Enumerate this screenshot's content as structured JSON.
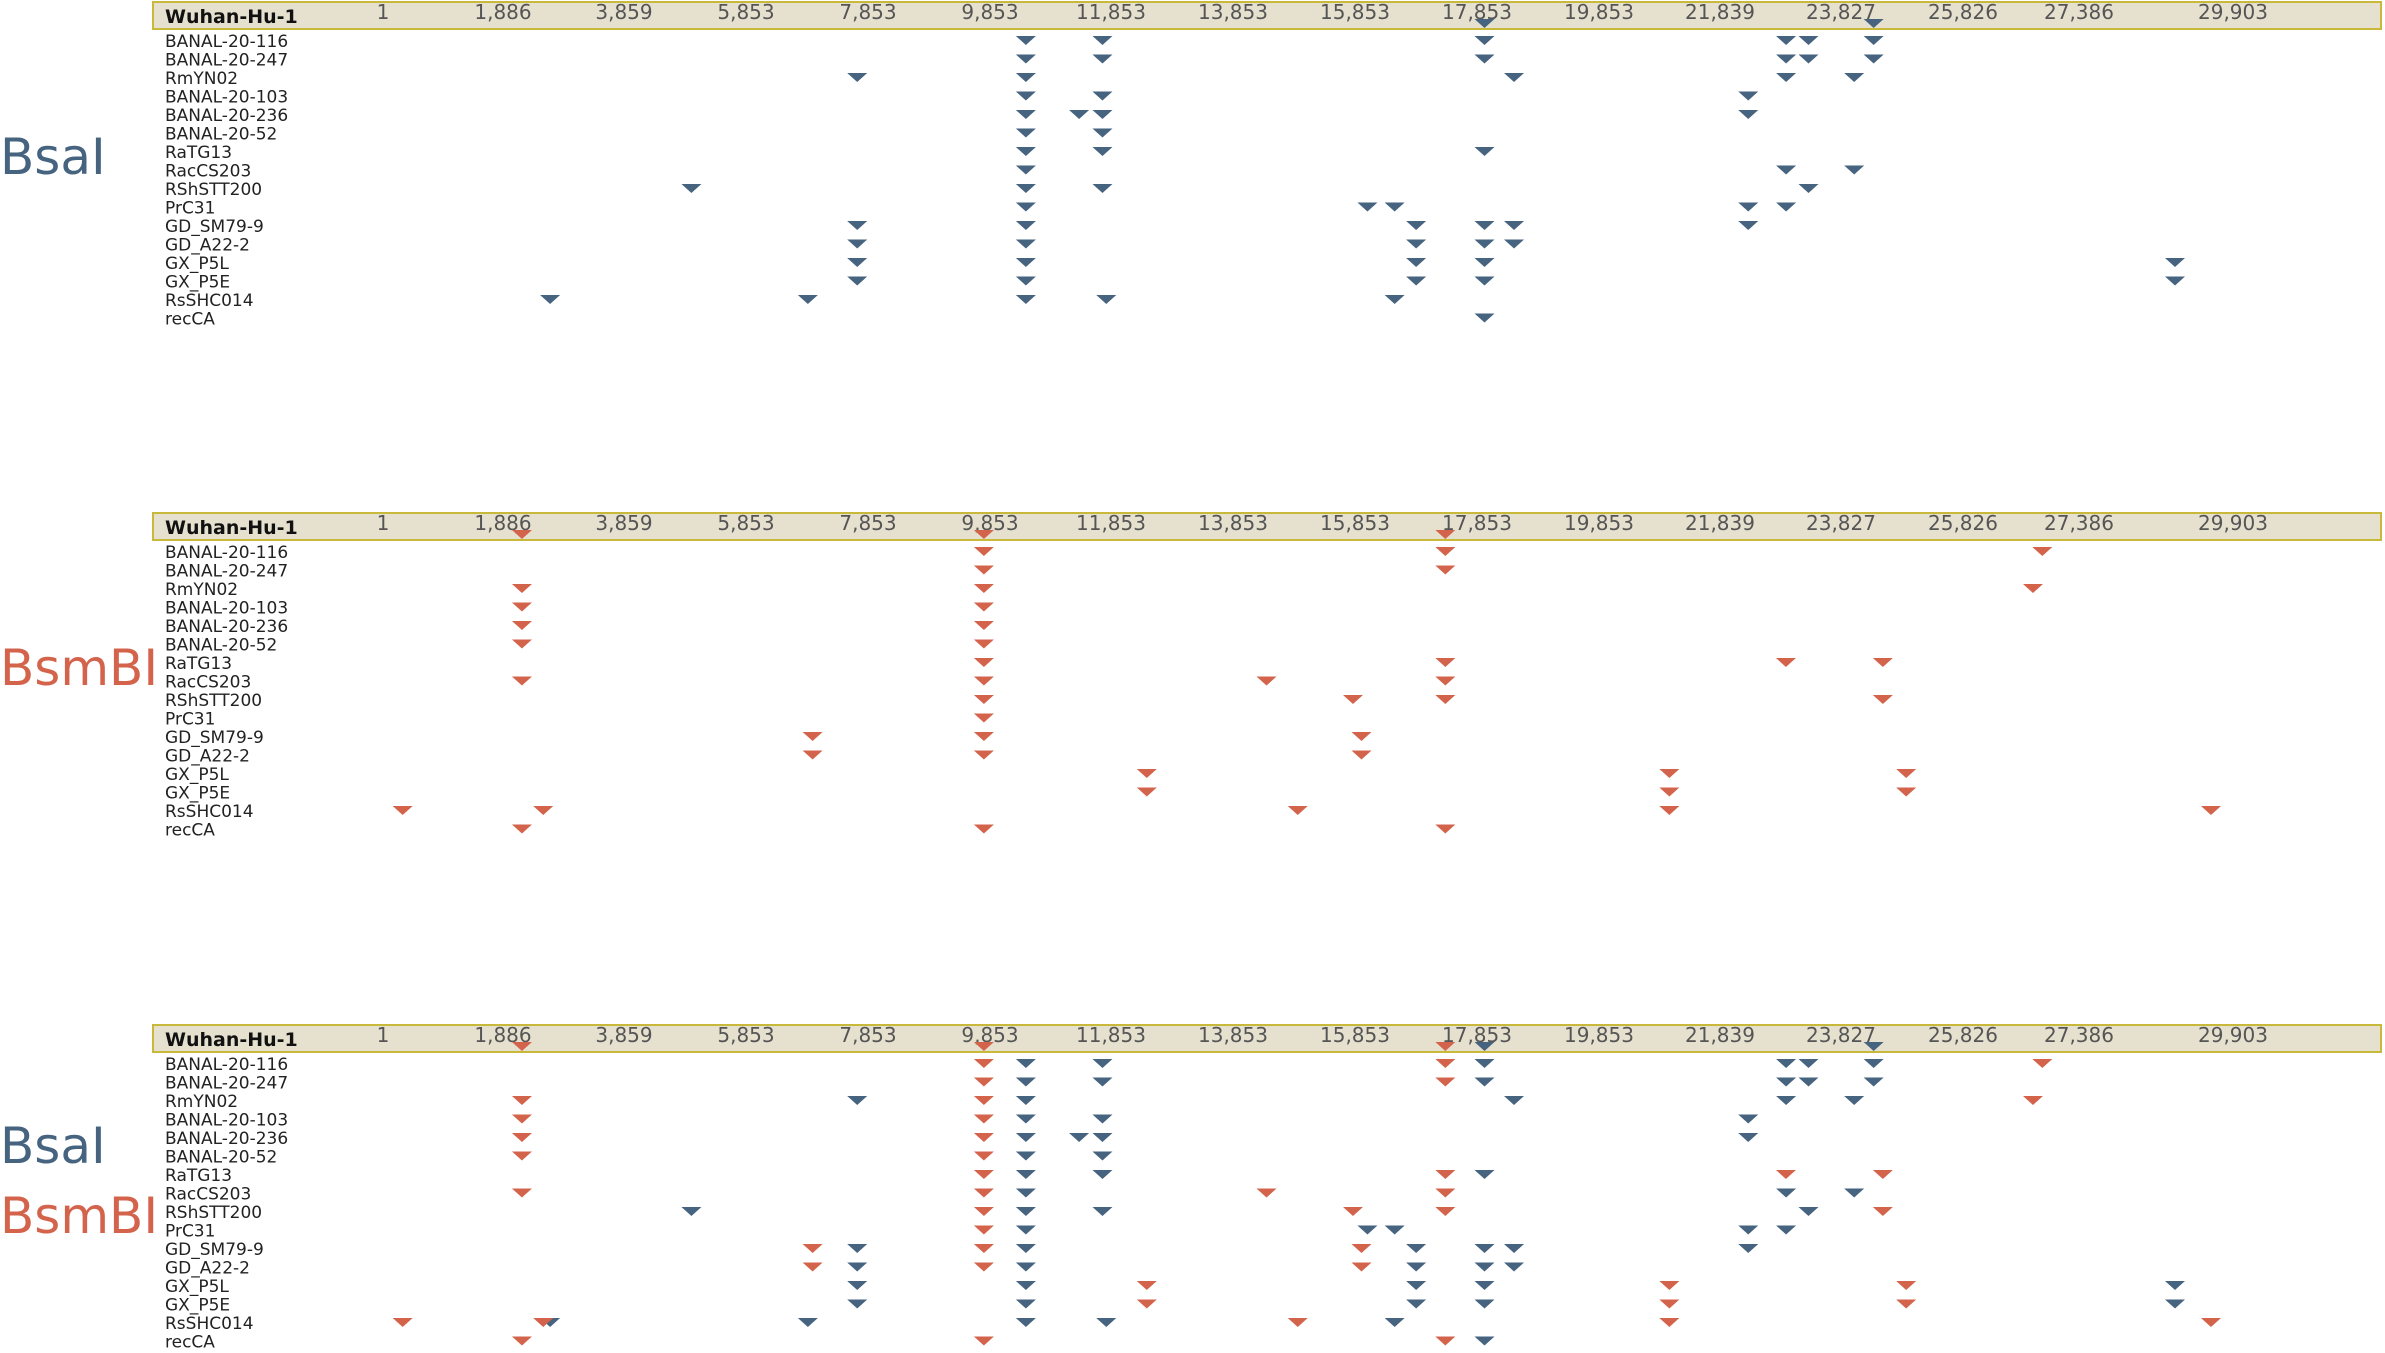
{
  "figure": {
    "reference_label": "Wuhan-Hu-1",
    "tick_labels": [
      "1",
      "1,886",
      "3,859",
      "5,853",
      "7,853",
      "9,853",
      "11,853",
      "13,853",
      "15,853",
      "17,853",
      "19,853",
      "21,839",
      "23,827",
      "25,826",
      "27,386",
      "29,903"
    ],
    "sequences": [
      "BANAL-20-116",
      "BANAL-20-247",
      "RmYN02",
      "BANAL-20-103",
      "BANAL-20-236",
      "BANAL-20-52",
      "RaTG13",
      "RacCS203",
      "RShSTT200",
      "PrC31",
      "GD_SM79-9",
      "GD_A22-2",
      "GX_P5L",
      "GX_P5E",
      "RsSHC014",
      "recCA"
    ],
    "colors": {
      "BsaI": "#46637f",
      "BsmBI": "#d4634c",
      "bar_fill": "#e6e0cf",
      "bar_border": "#c9b93b"
    }
  },
  "panels": [
    {
      "labels": [
        {
          "text": "BsaI",
          "enzyme": "BsaI"
        }
      ],
      "enzymes": [
        "BsaI"
      ]
    },
    {
      "labels": [
        {
          "text": "BsmBI",
          "enzyme": "BsmBI"
        }
      ],
      "enzymes": [
        "BsmBI"
      ]
    },
    {
      "labels": [
        {
          "text": "BsaI",
          "enzyme": "BsaI"
        },
        {
          "text": "BsmBI",
          "enzyme": "BsmBI"
        }
      ],
      "enzymes": [
        "BsaI",
        "BsmBI"
      ]
    }
  ],
  "sites": {
    "BsaI": {
      "Wuhan-Hu-1": [
        17976,
        24362
      ],
      "BANAL-20-116": [
        10446,
        11712,
        17976,
        22925,
        23293,
        24362
      ],
      "BANAL-20-247": [
        10446,
        11712,
        17976,
        22925,
        23293,
        24362
      ],
      "RmYN02": [
        7676,
        10446,
        18460,
        22925,
        24043
      ],
      "BANAL-20-103": [
        10446,
        11712,
        22303
      ],
      "BANAL-20-236": [
        10446,
        11326,
        11712,
        22303
      ],
      "BANAL-20-52": [
        10446,
        11712
      ],
      "RaTG13": [
        10446,
        11712,
        17976
      ],
      "RacCS203": [
        10446,
        22925,
        24043
      ],
      "RShSTT200": [
        4961,
        10446,
        11712,
        23293
      ],
      "PrC31": [
        10446,
        16057,
        16503,
        22303,
        22925
      ],
      "GD_SM79-9": [
        7676,
        10446,
        16855,
        17976,
        18460,
        22303
      ],
      "GD_A22-2": [
        7676,
        10446,
        16855,
        17976,
        18460
      ],
      "GX_P5L": [
        7676,
        10446,
        16855,
        17976,
        28955
      ],
      "GX_P5E": [
        7676,
        10446,
        16855,
        17976,
        28955
      ],
      "RsSHC014": [
        2654,
        6867,
        10446,
        11775,
        16503
      ],
      "recCA": [
        17976
      ]
    },
    "BsmBI": {
      "Wuhan-Hu-1": [
        2195,
        9753,
        17334
      ],
      "BANAL-20-116": [
        9753,
        17334,
        26893
      ],
      "BANAL-20-247": [
        9753,
        17334
      ],
      "RmYN02": [
        2195,
        9753,
        26767
      ],
      "BANAL-20-103": [
        2195,
        9753
      ],
      "BANAL-20-236": [
        2195,
        9753
      ],
      "BANAL-20-52": [
        2195,
        9753
      ],
      "RaTG13": [
        9753,
        17334,
        22922,
        24513
      ],
      "RacCS203": [
        2195,
        9753,
        14402,
        17334
      ],
      "RShSTT200": [
        9753,
        15820,
        17334,
        24513
      ],
      "PrC31": [
        9753
      ],
      "GD_SM79-9": [
        6945,
        9753,
        15960
      ],
      "GD_A22-2": [
        6945,
        9753,
        15960
      ],
      "GX_P5L": [
        12440,
        21008,
        24895
      ],
      "GX_P5E": [
        12440,
        21008,
        24895
      ],
      "RsSHC014": [
        310,
        2542,
        14914,
        21008,
        29543
      ],
      "recCA": [
        2195,
        9753,
        17334
      ]
    }
  }
}
